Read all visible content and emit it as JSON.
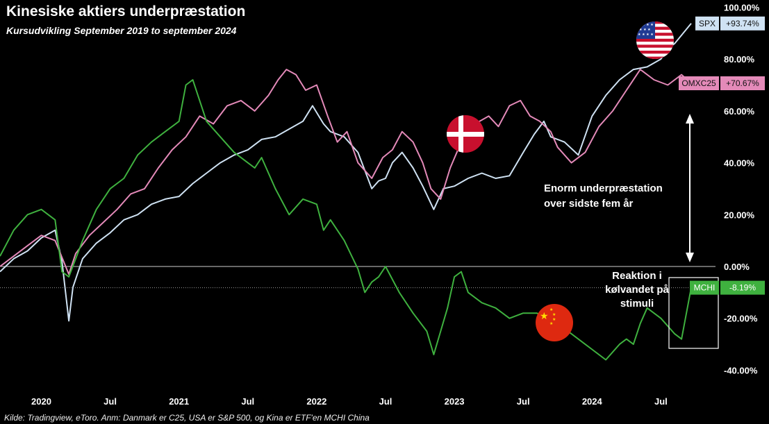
{
  "chart_data": {
    "type": "line",
    "title": "Kinesiske aktiers underpræstation",
    "subtitle": "Kursudvikling September 2019 to september 2024",
    "source": "Kilde: Tradingview, eToro. Anm: Danmark er C25, USA er S&P 500, og Kina er ETF'en MCHI China",
    "x_tick_labels": [
      "2020",
      "Jul",
      "2021",
      "Jul",
      "2022",
      "Jul",
      "2023",
      "Jul",
      "2024",
      "Jul"
    ],
    "x_tick_values": [
      2020.0,
      2020.5,
      2021.0,
      2021.5,
      2022.0,
      2022.5,
      2023.0,
      2023.5,
      2024.0,
      2024.5
    ],
    "xlim": [
      2019.7,
      2024.72
    ],
    "y_tick_labels": [
      "100.00%",
      "80.00%",
      "60.00%",
      "40.00%",
      "20.00%",
      "0.00%",
      "-20.00%",
      "-40.00%"
    ],
    "y_tick_values": [
      100,
      80,
      60,
      40,
      20,
      0,
      -20,
      -40
    ],
    "ylim": [
      -48,
      100
    ],
    "series": [
      {
        "name": "SPX",
        "color": "#cfe2f3",
        "last_label": "+93.74%",
        "x": [
          2019.7,
          2019.8,
          2019.9,
          2020.0,
          2020.1,
          2020.15,
          2020.2,
          2020.23,
          2020.3,
          2020.4,
          2020.5,
          2020.6,
          2020.7,
          2020.8,
          2020.9,
          2021.0,
          2021.1,
          2021.2,
          2021.3,
          2021.4,
          2021.5,
          2021.6,
          2021.7,
          2021.8,
          2021.9,
          2021.97,
          2022.05,
          2022.1,
          2022.2,
          2022.3,
          2022.4,
          2022.45,
          2022.5,
          2022.55,
          2022.62,
          2022.7,
          2022.77,
          2022.85,
          2022.92,
          2023.0,
          2023.1,
          2023.2,
          2023.3,
          2023.4,
          2023.5,
          2023.58,
          2023.65,
          2023.7,
          2023.8,
          2023.9,
          2024.0,
          2024.1,
          2024.2,
          2024.3,
          2024.4,
          2024.5,
          2024.55,
          2024.6,
          2024.72
        ],
        "y": [
          -2,
          3,
          6,
          11,
          14,
          2,
          -21,
          -8,
          3,
          9,
          13,
          18,
          20,
          24,
          26,
          27,
          32,
          36,
          40,
          43,
          45,
          49,
          50,
          53,
          56,
          62,
          55,
          52,
          50,
          44,
          30,
          33,
          34,
          40,
          44,
          38,
          31,
          22,
          30,
          31,
          34,
          36,
          34,
          35,
          44,
          51,
          56,
          50,
          48,
          43,
          58,
          66,
          72,
          76,
          77,
          80,
          84,
          86,
          93.74
        ]
      },
      {
        "name": "OMXC25",
        "color": "#e48ab9",
        "last_label": "+70.67%",
        "x": [
          2019.7,
          2019.8,
          2019.9,
          2020.0,
          2020.1,
          2020.2,
          2020.25,
          2020.35,
          2020.45,
          2020.55,
          2020.65,
          2020.75,
          2020.85,
          2020.95,
          2021.05,
          2021.15,
          2021.25,
          2021.35,
          2021.45,
          2021.55,
          2021.65,
          2021.72,
          2021.78,
          2021.85,
          2021.92,
          2022.0,
          2022.08,
          2022.15,
          2022.22,
          2022.3,
          2022.4,
          2022.48,
          2022.55,
          2022.62,
          2022.7,
          2022.77,
          2022.83,
          2022.9,
          2022.97,
          2023.05,
          2023.15,
          2023.25,
          2023.32,
          2023.4,
          2023.48,
          2023.55,
          2023.62,
          2023.7,
          2023.75,
          2023.85,
          2023.95,
          2024.05,
          2024.15,
          2024.25,
          2024.35,
          2024.45,
          2024.55,
          2024.65,
          2024.72
        ],
        "y": [
          0,
          4,
          8,
          12,
          10,
          -3,
          5,
          12,
          17,
          22,
          28,
          30,
          38,
          45,
          50,
          58,
          55,
          62,
          64,
          60,
          66,
          72,
          76,
          74,
          68,
          70,
          58,
          48,
          52,
          40,
          34,
          42,
          45,
          52,
          48,
          40,
          30,
          26,
          38,
          48,
          55,
          58,
          54,
          62,
          64,
          58,
          56,
          52,
          46,
          40,
          44,
          54,
          60,
          68,
          76,
          72,
          70,
          74,
          70.67
        ]
      },
      {
        "name": "MCHI",
        "color": "#3fb13f",
        "last_label": "-8.19%",
        "x": [
          2019.7,
          2019.8,
          2019.9,
          2020.0,
          2020.1,
          2020.15,
          2020.2,
          2020.3,
          2020.4,
          2020.5,
          2020.6,
          2020.7,
          2020.8,
          2020.9,
          2021.0,
          2021.05,
          2021.1,
          2021.2,
          2021.3,
          2021.4,
          2021.5,
          2021.55,
          2021.6,
          2021.7,
          2021.8,
          2021.9,
          2022.0,
          2022.05,
          2022.1,
          2022.2,
          2022.3,
          2022.35,
          2022.4,
          2022.45,
          2022.5,
          2022.6,
          2022.7,
          2022.8,
          2022.85,
          2022.95,
          2023.0,
          2023.05,
          2023.1,
          2023.2,
          2023.3,
          2023.4,
          2023.5,
          2023.6,
          2023.7,
          2023.8,
          2023.85,
          2023.95,
          2024.0,
          2024.1,
          2024.2,
          2024.25,
          2024.3,
          2024.35,
          2024.4,
          2024.5,
          2024.6,
          2024.65,
          2024.72
        ],
        "y": [
          4,
          14,
          20,
          22,
          18,
          -2,
          -4,
          10,
          22,
          30,
          34,
          43,
          48,
          52,
          56,
          70,
          72,
          56,
          50,
          44,
          40,
          38,
          42,
          30,
          20,
          26,
          24,
          14,
          18,
          10,
          -1,
          -10,
          -6,
          -4,
          0,
          -10,
          -18,
          -25,
          -34,
          -16,
          -4,
          -2,
          -10,
          -14,
          -16,
          -20,
          -18,
          -18,
          -22,
          -24,
          -26,
          -30,
          -32,
          -36,
          -30,
          -28,
          -30,
          -22,
          -16,
          -20,
          -26,
          -28,
          -8.19
        ]
      }
    ],
    "annotations": {
      "gap_text_1": "Enorm underpræstation",
      "gap_text_2": "over sidste fem år",
      "stimuli_text_1": "Reaktion i",
      "stimuli_text_2": "kølvandet på",
      "stimuli_text_3": "stimuli"
    },
    "flags": [
      "usa-flag-icon",
      "denmark-flag-icon",
      "china-flag-icon"
    ]
  }
}
